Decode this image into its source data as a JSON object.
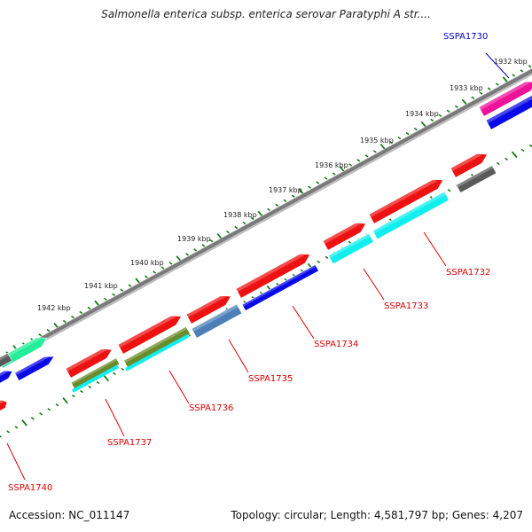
{
  "title": "Salmonella enterica subsp. enterica serovar Paratyphi A str....",
  "footer": {
    "accession": "Accession: NC_011147",
    "stats": "Topology: circular; Length: 4,581,797 bp; Genes: 4,207"
  },
  "colors": {
    "backbone": "#7a7a7a",
    "tick": "#1a7a1a",
    "red": "#ee1111",
    "cyan": "#11eeee",
    "blue": "#0a0ae6",
    "steelblue": "#4a7fb8",
    "olive": "#6b8a2a",
    "grey": "#5a5a5a",
    "magenta": "#ee1199",
    "green": "#22ee99",
    "label_red": "#dd0000",
    "label_blue": "#0000cc"
  },
  "kbp_labels": [
    "1932 kbp",
    "1933 kbp",
    "1934 kbp",
    "1935 kbp",
    "1936 kbp",
    "1937 kbp",
    "1938 kbp",
    "1939 kbp",
    "1940 kbp",
    "1941 kbp",
    "1942 kbp"
  ],
  "gene_labels": [
    "SSPA1730",
    "SSPA1732",
    "SSPA1733",
    "SSPA1734",
    "SSPA1735",
    "SSPA1736",
    "SSPA1737",
    "SSPA1740"
  ]
}
